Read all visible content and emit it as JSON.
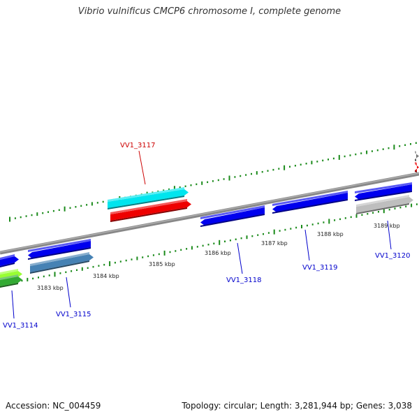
{
  "title": "Vibrio vulnificus CMCP6 chromosome I, complete genome",
  "footer": {
    "accession": "Accession: NC_004459",
    "topology": "Topology: circular; Length: 3,281,944 bp; Genes: 3,038"
  },
  "scale_labels": [
    "3183 kbp",
    "3184 kbp",
    "3185 kbp",
    "3186 kbp",
    "3187 kbp",
    "3188 kbp",
    "3189 kbp"
  ],
  "gene_labels": [
    {
      "text": "VV1_3114",
      "color": "#0000cc"
    },
    {
      "text": "VV1_3115",
      "color": "#0000cc"
    },
    {
      "text": "VV1_3117",
      "color": "#cc0000"
    },
    {
      "text": "VV1_3118",
      "color": "#0000cc"
    },
    {
      "text": "VV1_3119",
      "color": "#0000cc"
    },
    {
      "text": "VV1_3120",
      "color": "#0000cc"
    }
  ],
  "colors": {
    "backbone": "#888888",
    "tick": "#1a8a1a",
    "gene_blue": "#0000ee",
    "gene_cyan": "#00e5ee",
    "gene_red": "#ee0000",
    "gene_steel": "#4682b4",
    "gene_grey": "#bebebe",
    "gene_green": "#33aa33",
    "gene_lime": "#99ff33"
  }
}
